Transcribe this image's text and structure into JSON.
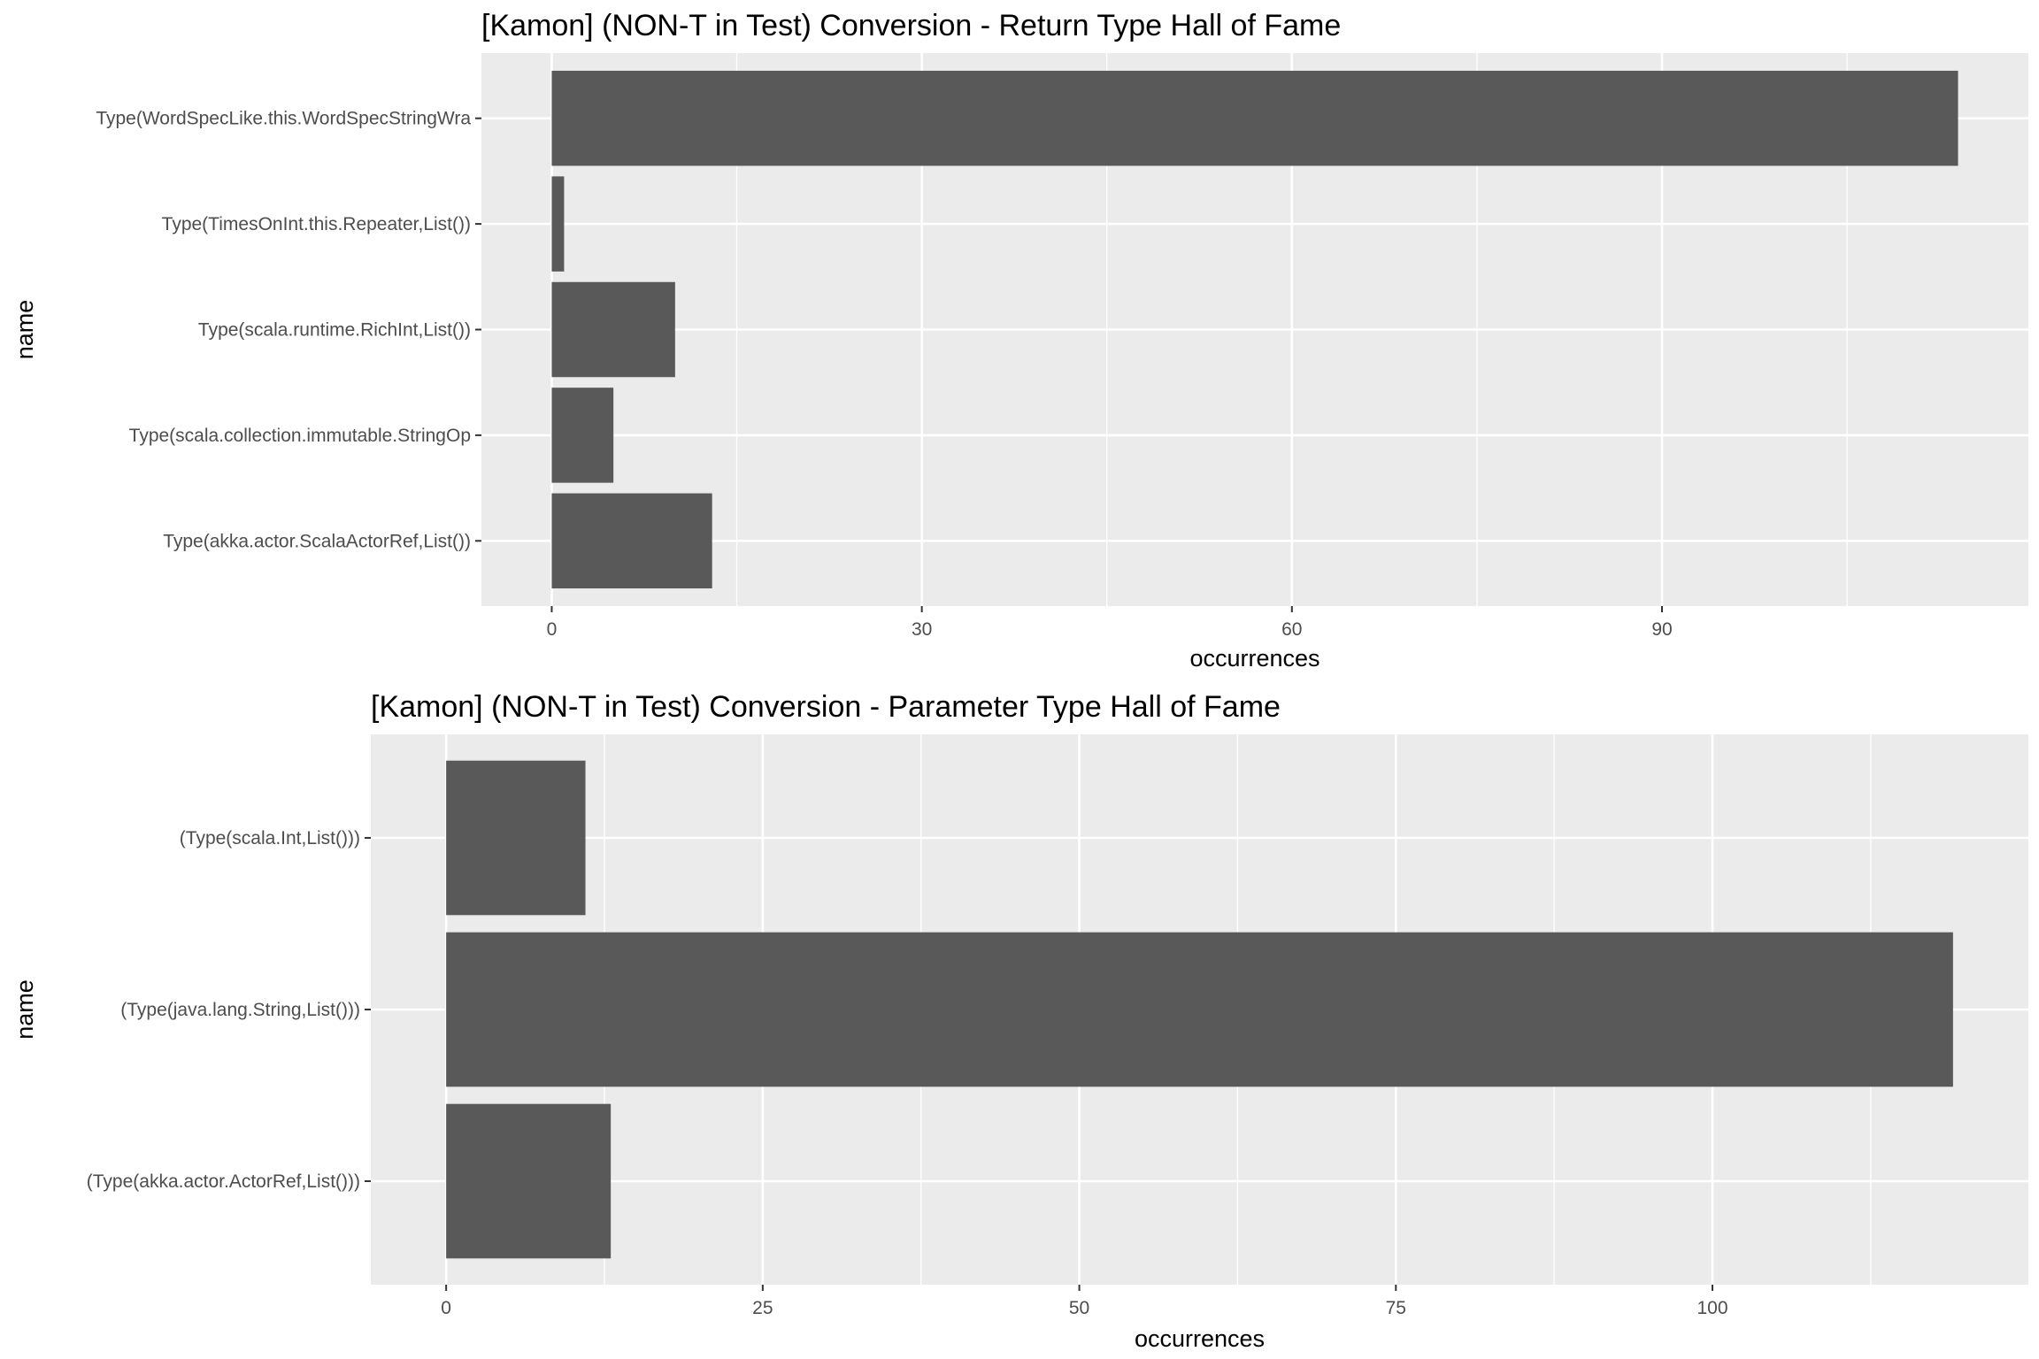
{
  "chart_data": [
    {
      "type": "bar",
      "orientation": "horizontal",
      "title": "[Kamon] (NON-T in Test) Conversion - Return Type Hall of Fame",
      "xlabel": "occurrences",
      "ylabel": "name",
      "categories": [
        "Type(WordSpecLike.this.WordSpecStringWra",
        "Type(TimesOnInt.this.Repeater,List())",
        "Type(scala.runtime.RichInt,List())",
        "Type(scala.collection.immutable.StringOp",
        "Type(akka.actor.ScalaActorRef,List())"
      ],
      "values": [
        114,
        1,
        10,
        5,
        13
      ],
      "xlim": [
        -5.7,
        119.7
      ],
      "xticks": [
        0,
        30,
        60,
        90
      ],
      "xminor": [
        15,
        45,
        75,
        105
      ],
      "grid": true,
      "bar_color": "#595959",
      "panel_background": "#ebebeb"
    },
    {
      "type": "bar",
      "orientation": "horizontal",
      "title": "[Kamon] (NON-T in Test) Conversion - Parameter Type Hall of Fame",
      "xlabel": "occurrences",
      "ylabel": "name",
      "categories": [
        "(Type(scala.Int,List()))",
        "(Type(java.lang.String,List()))",
        "(Type(akka.actor.ActorRef,List()))"
      ],
      "values": [
        11,
        119,
        13
      ],
      "xlim": [
        -5.95,
        124.95
      ],
      "xticks": [
        0,
        25,
        50,
        75,
        100
      ],
      "xminor": [
        12.5,
        37.5,
        62.5,
        87.5,
        112.5
      ],
      "grid": true,
      "bar_color": "#595959",
      "panel_background": "#ebebeb"
    }
  ]
}
